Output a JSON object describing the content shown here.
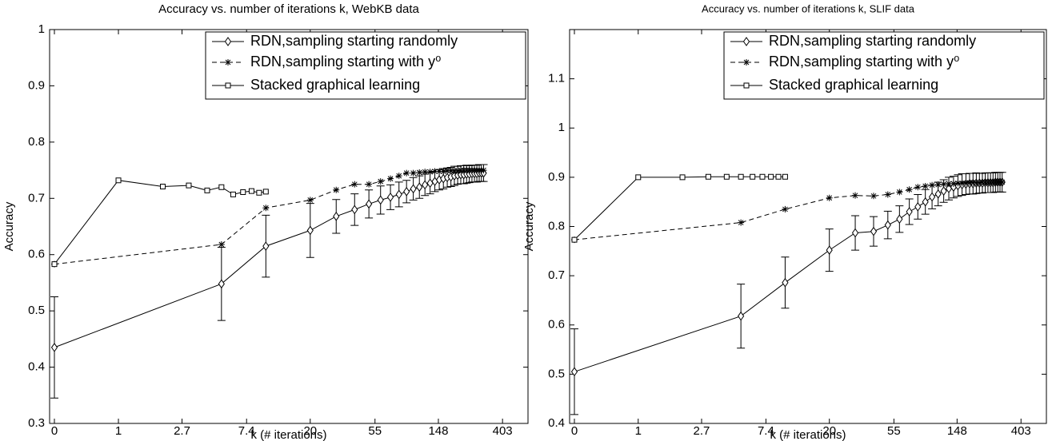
{
  "chart_data": [
    {
      "type": "line",
      "title": "Accuracy vs. number of iterations k, WebKB data",
      "xlabel": "k (# iterations)",
      "ylabel": "Accuracy",
      "xlim": [
        0,
        600
      ],
      "xticks": [
        0,
        1,
        2.7,
        7.4,
        20,
        55,
        148,
        403
      ],
      "ylim": [
        0.3,
        1
      ],
      "yticks": [
        0.3,
        0.4,
        0.5,
        0.6,
        0.7,
        0.8,
        0.9,
        1
      ],
      "legend": "upper right",
      "series": [
        {
          "name": "RDN,sampling starting randomly",
          "color": "#000000",
          "marker": "diamond",
          "linestyle": "solid",
          "x": [
            0,
            5,
            10,
            20,
            30,
            40,
            50,
            60,
            70,
            80,
            90,
            100,
            110,
            120,
            130,
            140,
            150,
            160,
            170,
            180,
            190,
            200,
            210,
            220,
            230,
            240,
            250,
            260,
            270,
            280,
            290,
            300
          ],
          "values": [
            0.435,
            0.548,
            0.615,
            0.643,
            0.668,
            0.68,
            0.69,
            0.697,
            0.702,
            0.707,
            0.712,
            0.717,
            0.72,
            0.724,
            0.727,
            0.73,
            0.733,
            0.735,
            0.737,
            0.738,
            0.74,
            0.741,
            0.742,
            0.742,
            0.743,
            0.743,
            0.744,
            0.744,
            0.744,
            0.745,
            0.745,
            0.745
          ],
          "errors": [
            0.09,
            0.065,
            0.055,
            0.048,
            0.03,
            0.028,
            0.025,
            0.025,
            0.022,
            0.022,
            0.02,
            0.02,
            0.02,
            0.019,
            0.019,
            0.018,
            0.018,
            0.018,
            0.017,
            0.017,
            0.017,
            0.016,
            0.016,
            0.016,
            0.016,
            0.015,
            0.015,
            0.015,
            0.015,
            0.015,
            0.015,
            0.015
          ]
        },
        {
          "name": "RDN,sampling starting with y⁰",
          "color": "#000000",
          "marker": "star",
          "linestyle": "dashed",
          "x": [
            0,
            5,
            10,
            20,
            30,
            40,
            50,
            60,
            70,
            80,
            90,
            100,
            110,
            120,
            130,
            140,
            150,
            160,
            170,
            180,
            190,
            200,
            210,
            220,
            230,
            240,
            250,
            260,
            270,
            280,
            290,
            300
          ],
          "values": [
            0.583,
            0.618,
            0.683,
            0.697,
            0.715,
            0.725,
            0.725,
            0.73,
            0.735,
            0.74,
            0.745,
            0.745,
            0.746,
            0.747,
            0.747,
            0.748,
            0.748,
            0.748,
            0.749,
            0.749,
            0.749,
            0.749,
            0.75,
            0.75,
            0.75,
            0.75,
            0.75,
            0.75,
            0.75,
            0.75,
            0.75,
            0.75
          ]
        },
        {
          "name": "Stacked graphical learning",
          "color": "#000000",
          "marker": "square",
          "linestyle": "solid",
          "x": [
            0,
            1,
            2,
            3,
            4,
            5,
            6,
            7,
            8,
            9,
            10
          ],
          "values": [
            0.583,
            0.732,
            0.721,
            0.723,
            0.714,
            0.72,
            0.707,
            0.711,
            0.713,
            0.71,
            0.712
          ]
        }
      ]
    },
    {
      "type": "line",
      "title": "Accuracy vs. number of iterations k, SLIF data",
      "xlabel": "k (# iterations)",
      "ylabel": "Accuracy",
      "xlim": [
        0,
        600
      ],
      "xticks": [
        0,
        1,
        2.7,
        7.4,
        20,
        55,
        148,
        403
      ],
      "ylim": [
        0.4,
        1.2
      ],
      "yticks": [
        0.4,
        0.5,
        0.6,
        0.7,
        0.8,
        0.9,
        1,
        1.1
      ],
      "legend": "upper right",
      "series": [
        {
          "name": "RDN,sampling starting randomly",
          "color": "#000000",
          "marker": "diamond",
          "linestyle": "solid",
          "x": [
            0,
            5,
            10,
            20,
            30,
            40,
            50,
            60,
            70,
            80,
            90,
            100,
            110,
            120,
            130,
            140,
            150,
            160,
            170,
            180,
            190,
            200,
            210,
            220,
            230,
            240,
            250,
            260,
            270,
            280,
            290,
            300
          ],
          "values": [
            0.505,
            0.618,
            0.686,
            0.752,
            0.787,
            0.79,
            0.803,
            0.815,
            0.83,
            0.84,
            0.85,
            0.86,
            0.866,
            0.872,
            0.877,
            0.88,
            0.883,
            0.885,
            0.886,
            0.887,
            0.887,
            0.888,
            0.888,
            0.888,
            0.889,
            0.889,
            0.889,
            0.889,
            0.89,
            0.89,
            0.89,
            0.89
          ],
          "errors": [
            0.087,
            0.065,
            0.052,
            0.043,
            0.035,
            0.03,
            0.028,
            0.027,
            0.026,
            0.025,
            0.025,
            0.024,
            0.024,
            0.023,
            0.023,
            0.022,
            0.022,
            0.022,
            0.021,
            0.021,
            0.021,
            0.021,
            0.02,
            0.02,
            0.02,
            0.02,
            0.02,
            0.02,
            0.02,
            0.02,
            0.02,
            0.02
          ]
        },
        {
          "name": "RDN,sampling starting with y⁰",
          "color": "#000000",
          "marker": "star",
          "linestyle": "dashed",
          "x": [
            0,
            5,
            10,
            20,
            30,
            40,
            50,
            60,
            70,
            80,
            90,
            100,
            110,
            120,
            130,
            140,
            150,
            160,
            170,
            180,
            190,
            200,
            210,
            220,
            230,
            240,
            250,
            260,
            270,
            280,
            290,
            300
          ],
          "values": [
            0.773,
            0.808,
            0.835,
            0.858,
            0.863,
            0.862,
            0.865,
            0.87,
            0.875,
            0.88,
            0.882,
            0.884,
            0.885,
            0.886,
            0.887,
            0.887,
            0.888,
            0.888,
            0.888,
            0.889,
            0.889,
            0.889,
            0.889,
            0.89,
            0.89,
            0.89,
            0.89,
            0.89,
            0.89,
            0.89,
            0.89,
            0.89
          ]
        },
        {
          "name": "Stacked graphical learning",
          "color": "#000000",
          "marker": "square",
          "linestyle": "solid",
          "x": [
            0,
            1,
            2,
            3,
            4,
            5,
            6,
            7,
            8,
            9,
            10
          ],
          "values": [
            0.773,
            0.9,
            0.9,
            0.901,
            0.901,
            0.901,
            0.901,
            0.901,
            0.901,
            0.901,
            0.901
          ]
        }
      ]
    }
  ]
}
